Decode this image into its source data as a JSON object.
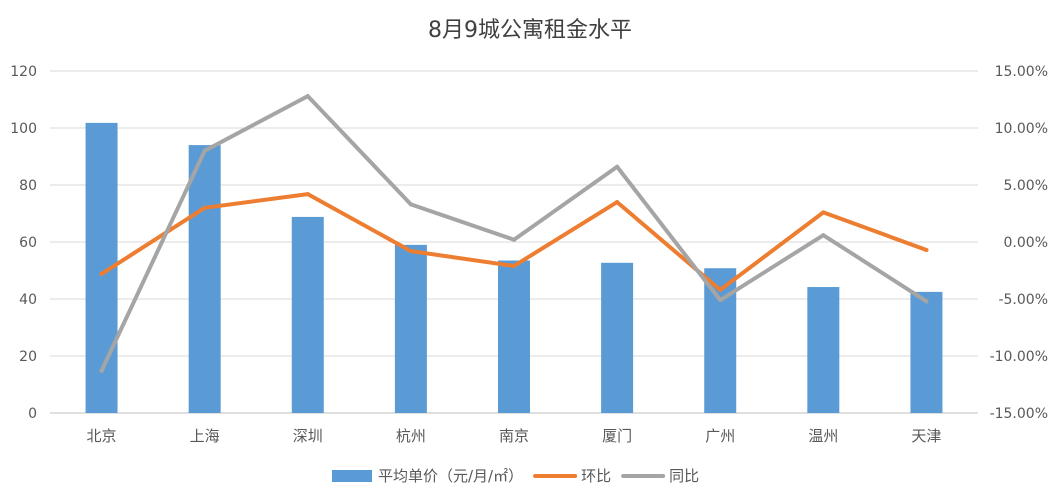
{
  "chart_data": {
    "type": "bar",
    "title": "8月9城公寓租金水平",
    "categories": [
      "北京",
      "上海",
      "深圳",
      "杭州",
      "南京",
      "厦门",
      "广州",
      "温州",
      "天津"
    ],
    "y_left": {
      "min": 0,
      "max": 120,
      "step": 20,
      "ticks": [
        "0",
        "20",
        "40",
        "60",
        "80",
        "100",
        "120"
      ]
    },
    "y_right": {
      "min": -15,
      "max": 15,
      "step": 5,
      "ticks": [
        "-15.00%",
        "-10.00%",
        "-5.00%",
        "0.00%",
        "5.00%",
        "10.00%",
        "15.00%"
      ]
    },
    "grid": true,
    "legend_position": "bottom",
    "series": [
      {
        "name": "平均单价（元/月/㎡）",
        "type": "bar",
        "axis": "left",
        "color": "#5B9BD5",
        "values": [
          101.8,
          94.0,
          68.8,
          59.0,
          53.5,
          52.7,
          50.8,
          44.2,
          42.5
        ]
      },
      {
        "name": "环比",
        "type": "line",
        "axis": "right",
        "color": "#ED7D31",
        "values": [
          -2.8,
          3.0,
          4.2,
          -0.8,
          -2.1,
          3.5,
          -4.2,
          2.6,
          -0.7
        ]
      },
      {
        "name": "同比",
        "type": "line",
        "axis": "right",
        "color": "#A5A5A5",
        "values": [
          -11.3,
          8.0,
          12.8,
          3.3,
          0.2,
          6.6,
          -5.1,
          0.6,
          -5.2
        ]
      }
    ]
  }
}
